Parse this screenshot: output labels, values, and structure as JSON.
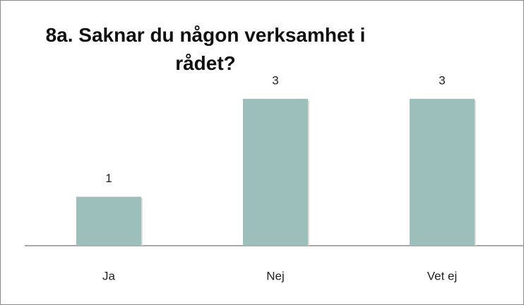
{
  "chart_data": {
    "type": "bar",
    "title": "8a. Saknar du någon verksamhet i rådet?",
    "categories": [
      "Ja",
      "Nej",
      "Vet ej"
    ],
    "values": [
      1,
      3,
      3
    ],
    "color": "#9dbfbc"
  }
}
